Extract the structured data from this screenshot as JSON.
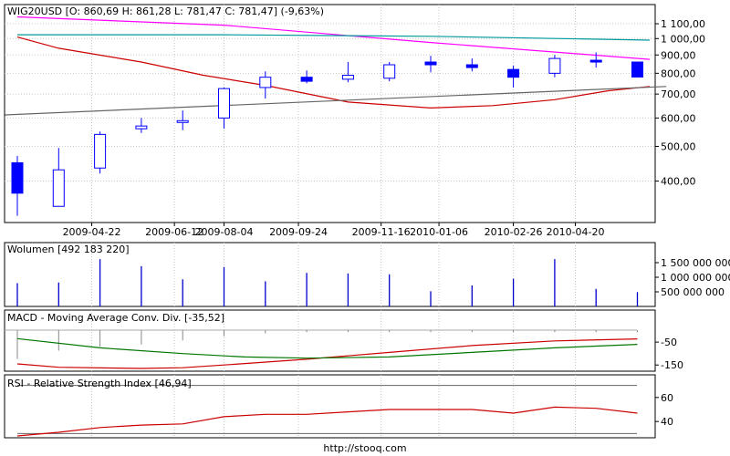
{
  "colors": {
    "candle_up": "#0000ff",
    "candle_down": "#0000ff",
    "wick": "#0000ff",
    "ma_short": "#ff00ff",
    "ma_teal": "#009999",
    "ma_red": "#cc0000",
    "trend_gray": "#666666",
    "volume_bar": "#0000cc",
    "macd_line": "#cc0000",
    "signal_line": "#007700",
    "hist_bar": "#888888",
    "rsi_line": "#cc0000",
    "rsi_band": "#666666"
  },
  "footer": "http://stooq.com",
  "chart_data": [
    {
      "type": "candlestick",
      "title": "WIG20USD [O: 860,69  H: 861,28  L: 781,47  C: 781,47] (-9,63%)",
      "log_scale": true,
      "ylim": [
        310,
        1160
      ],
      "y_ticks": [
        400,
        500,
        600,
        700,
        800,
        900,
        1000,
        1100
      ],
      "y_tick_labels": [
        "400,00",
        "500,00",
        "600,00",
        "700,00",
        "800,00",
        "900,00",
        "1 000,00",
        "1 100,00"
      ],
      "x_tick_labels": [
        "2009-04-22",
        "2009-06-12",
        "2009-08-04",
        "2009-09-24",
        "2009-11-16",
        "2010-01-06",
        "2010-02-26",
        "2010-04-20"
      ],
      "x_tick_positions": [
        1.8,
        3.8,
        5.0,
        6.8,
        8.8,
        10.2,
        12.0,
        13.5
      ],
      "candles": [
        {
          "open": 450,
          "high": 470,
          "low": 320,
          "close": 370
        },
        {
          "open": 340,
          "high": 495,
          "low": 340,
          "close": 430
        },
        {
          "open": 435,
          "high": 550,
          "low": 420,
          "close": 540
        },
        {
          "open": 560,
          "high": 600,
          "low": 545,
          "close": 570
        },
        {
          "open": 585,
          "high": 630,
          "low": 555,
          "close": 590
        },
        {
          "open": 600,
          "high": 730,
          "low": 560,
          "close": 725
        },
        {
          "open": 730,
          "high": 810,
          "low": 680,
          "close": 780
        },
        {
          "open": 780,
          "high": 815,
          "low": 750,
          "close": 760
        },
        {
          "open": 770,
          "high": 860,
          "low": 755,
          "close": 790
        },
        {
          "open": 775,
          "high": 860,
          "low": 760,
          "close": 845
        },
        {
          "open": 860,
          "high": 895,
          "low": 805,
          "close": 845
        },
        {
          "open": 845,
          "high": 880,
          "low": 810,
          "close": 830
        },
        {
          "open": 820,
          "high": 840,
          "low": 730,
          "close": 780
        },
        {
          "open": 800,
          "high": 900,
          "low": 780,
          "close": 880
        },
        {
          "open": 870,
          "high": 915,
          "low": 830,
          "close": 860
        },
        {
          "open": 860,
          "high": 861,
          "low": 781,
          "close": 781
        }
      ],
      "series": [
        {
          "key": "ma_short",
          "values": [
            {
              "x": 0,
              "y": 1150
            },
            {
              "x": 5,
              "y": 1090
            },
            {
              "x": 10,
              "y": 975
            },
            {
              "x": 15.3,
              "y": 875
            }
          ]
        },
        {
          "key": "ma_teal",
          "values": [
            {
              "x": 0,
              "y": 1025
            },
            {
              "x": 5,
              "y": 1025
            },
            {
              "x": 10,
              "y": 1015
            },
            {
              "x": 15.3,
              "y": 990
            }
          ]
        },
        {
          "key": "ma_red",
          "values": [
            {
              "x": 0,
              "y": 1010
            },
            {
              "x": 1,
              "y": 940
            },
            {
              "x": 3,
              "y": 860
            },
            {
              "x": 4.5,
              "y": 790
            },
            {
              "x": 6,
              "y": 740
            },
            {
              "x": 8,
              "y": 665
            },
            {
              "x": 10,
              "y": 640
            },
            {
              "x": 11.5,
              "y": 650
            },
            {
              "x": 13,
              "y": 675
            },
            {
              "x": 14.3,
              "y": 715
            },
            {
              "x": 15.3,
              "y": 735
            }
          ]
        },
        {
          "key": "trend_gray",
          "values": [
            {
              "x": -0.3,
              "y": 612
            },
            {
              "x": 15.7,
              "y": 735
            }
          ]
        }
      ]
    },
    {
      "type": "bar",
      "title": "Wolumen [492 183 220]",
      "ylim": [
        0,
        2000000000
      ],
      "y_ticks": [
        500000000,
        1000000000,
        1500000000
      ],
      "y_tick_labels": [
        "500 000 000",
        "1 000 000 000",
        "1 500 000 000"
      ],
      "values": [
        800000000,
        820000000,
        1620000000,
        1380000000,
        930000000,
        1350000000,
        860000000,
        1150000000,
        1130000000,
        1100000000,
        520000000,
        720000000,
        950000000,
        1620000000,
        600000000,
        492183220
      ]
    },
    {
      "type": "line",
      "title": "MACD - Moving Average Conv. Div. [-35,52]",
      "ylim": [
        -165,
        10
      ],
      "y_ticks": [
        -50,
        -150
      ],
      "y_tick_labels": [
        "-50",
        "-150"
      ],
      "histogram": [
        -70,
        -50,
        -40,
        -35,
        -25,
        -15,
        -8,
        -5,
        -5,
        -5,
        -5,
        -5,
        -5,
        -5,
        -5,
        -5
      ],
      "series": [
        {
          "key": "macd_line",
          "values": [
            {
              "x": 0,
              "y": -145
            },
            {
              "x": 1,
              "y": -160
            },
            {
              "x": 3,
              "y": -165
            },
            {
              "x": 4,
              "y": -162
            },
            {
              "x": 5,
              "y": -150
            },
            {
              "x": 7,
              "y": -125
            },
            {
              "x": 9,
              "y": -95
            },
            {
              "x": 11,
              "y": -65
            },
            {
              "x": 13,
              "y": -45
            },
            {
              "x": 15,
              "y": -36
            }
          ]
        },
        {
          "key": "signal_line",
          "values": [
            {
              "x": 0,
              "y": -35
            },
            {
              "x": 2,
              "y": -75
            },
            {
              "x": 4,
              "y": -100
            },
            {
              "x": 5.5,
              "y": -115
            },
            {
              "x": 7,
              "y": -120
            },
            {
              "x": 9,
              "y": -115
            },
            {
              "x": 11,
              "y": -95
            },
            {
              "x": 13,
              "y": -75
            },
            {
              "x": 15,
              "y": -60
            }
          ]
        }
      ]
    },
    {
      "type": "line",
      "title": "RSI - Relative Strength Index [46,94]",
      "ylim": [
        28,
        72
      ],
      "y_ticks": [
        60,
        40
      ],
      "y_tick_labels": [
        "60",
        "40"
      ],
      "bands": [
        70,
        30
      ],
      "series": [
        {
          "key": "rsi_line",
          "values": [
            {
              "x": 0,
              "y": 28
            },
            {
              "x": 1,
              "y": 31
            },
            {
              "x": 2,
              "y": 35
            },
            {
              "x": 3,
              "y": 37
            },
            {
              "x": 4,
              "y": 38
            },
            {
              "x": 5,
              "y": 44
            },
            {
              "x": 6,
              "y": 46
            },
            {
              "x": 7,
              "y": 46
            },
            {
              "x": 8,
              "y": 48
            },
            {
              "x": 9,
              "y": 50
            },
            {
              "x": 10,
              "y": 50
            },
            {
              "x": 11,
              "y": 50
            },
            {
              "x": 12,
              "y": 47
            },
            {
              "x": 13,
              "y": 52
            },
            {
              "x": 14,
              "y": 51
            },
            {
              "x": 15,
              "y": 47
            }
          ]
        }
      ]
    }
  ]
}
